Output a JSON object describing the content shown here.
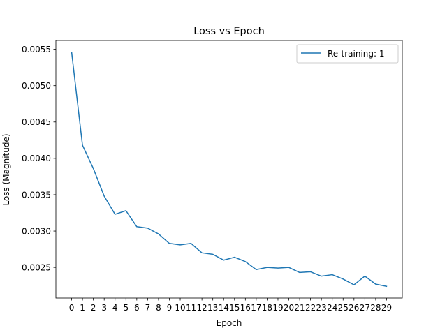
{
  "chart_data": {
    "type": "line",
    "title": "Loss vs Epoch",
    "xlabel": "Epoch",
    "ylabel": "Loss (Magnitude)",
    "x": [
      0,
      1,
      2,
      3,
      4,
      5,
      6,
      7,
      8,
      9,
      10,
      11,
      12,
      13,
      14,
      15,
      16,
      17,
      18,
      19,
      20,
      21,
      22,
      23,
      24,
      25,
      26,
      27,
      28,
      29
    ],
    "series": [
      {
        "name": "Re-training: 1",
        "color": "#1f77b4",
        "values": [
          0.00546,
          0.00418,
          0.00386,
          0.00348,
          0.00323,
          0.00328,
          0.00306,
          0.00304,
          0.00296,
          0.00283,
          0.00281,
          0.00283,
          0.0027,
          0.00268,
          0.0026,
          0.00264,
          0.00258,
          0.00247,
          0.0025,
          0.00249,
          0.0025,
          0.00243,
          0.00244,
          0.00238,
          0.0024,
          0.00234,
          0.00226,
          0.00238,
          0.00227,
          0.00224
        ]
      }
    ],
    "xticks": [
      "0",
      "1",
      "2",
      "3",
      "4",
      "5",
      "6",
      "7",
      "8",
      "9",
      "10",
      "11",
      "12",
      "13",
      "14",
      "15",
      "16",
      "17",
      "18",
      "19",
      "20",
      "21",
      "22",
      "23",
      "24",
      "25",
      "26",
      "27",
      "28",
      "29"
    ],
    "yticks": [
      0.0025,
      0.003,
      0.0035,
      0.004,
      0.0045,
      0.005,
      0.0055
    ],
    "ytick_labels": [
      "0.0025",
      "0.0030",
      "0.0035",
      "0.0040",
      "0.0045",
      "0.0050",
      "0.0055"
    ],
    "xlim": [
      -1.45,
      30.45
    ],
    "ylim": [
      0.002079,
      0.005621
    ],
    "grid": false,
    "legend_position": "upper right"
  }
}
